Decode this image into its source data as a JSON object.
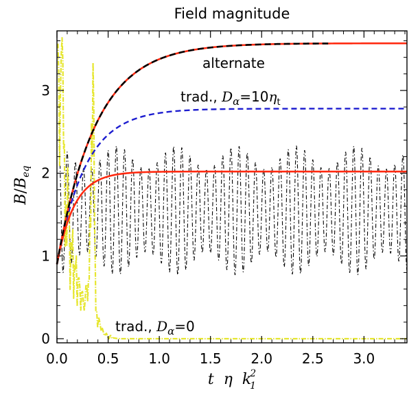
{
  "chart_data": {
    "type": "line",
    "title": "Field magnitude",
    "xlabel": {
      "t": "t",
      "eta": "η",
      "k": "k",
      "sup": "2",
      "sub": "1"
    },
    "ylabel": {
      "B": "B",
      "slash": "/",
      "Beq": "B",
      "sub": "eq"
    },
    "xlim": [
      0,
      3.42
    ],
    "ylim": [
      -0.05,
      3.72
    ],
    "x_ticks": [
      "0.0",
      "0.5",
      "1.0",
      "1.5",
      "2.0",
      "2.5",
      "3.0"
    ],
    "y_ticks": [
      "0",
      "1",
      "2",
      "3"
    ],
    "grid": false,
    "annotations": [
      {
        "text": "alternate",
        "x": 1.05,
        "y": 3.3
      },
      {
        "prefix": "trad.,",
        "D": "D",
        "alpha": "α",
        "eq": "=10",
        "eta": "η",
        "sub": "t",
        "x": 0.9,
        "y": 2.85
      },
      {
        "prefix": "trad.,",
        "D": "D",
        "alpha": "α",
        "eq": "=0",
        "x": 0.45,
        "y": 0.12
      }
    ],
    "series": [
      {
        "style": "black dash-dot",
        "color": "#000000",
        "kind": "oscillation",
        "mean": 1.55,
        "amplitude": 0.78,
        "period": 0.08,
        "start": 0.02,
        "end": 3.42
      },
      {
        "style": "yellow dash-dot",
        "color": "#e6e62e",
        "kind": "noisy-decay",
        "points": [
          [
            0.01,
            3.7
          ],
          [
            0.05,
            2.8
          ],
          [
            0.08,
            1.9
          ],
          [
            0.12,
            1.2
          ],
          [
            0.18,
            0.8
          ],
          [
            0.25,
            0.45
          ],
          [
            0.3,
            0.55
          ],
          [
            0.33,
            1.9
          ],
          [
            0.36,
            2.4
          ],
          [
            0.38,
            0.3
          ],
          [
            0.45,
            0.08
          ],
          [
            0.5,
            0.02
          ],
          [
            0.6,
            0.0
          ],
          [
            3.42,
            0.0
          ]
        ]
      },
      {
        "style": "blue dashed",
        "color": "#1c1ccf",
        "kind": "saturation",
        "y0": 0.9,
        "y_inf": 2.78,
        "tau": 0.28,
        "start": 0.0,
        "end": 3.42
      },
      {
        "style": "red solid",
        "color": "#ff2a10",
        "kind": "saturation",
        "y0": 0.9,
        "y_inf": 2.02,
        "tau": 0.17,
        "start": 0.0,
        "end": 3.42
      },
      {
        "style": "red solid",
        "color": "#ff2a10",
        "kind": "saturation",
        "y0": 0.9,
        "y_inf": 3.57,
        "tau": 0.38,
        "start": 0.0,
        "end": 3.42
      },
      {
        "style": "black dashed",
        "color": "#000000",
        "kind": "saturation",
        "y0": 0.9,
        "y_inf": 3.57,
        "tau": 0.38,
        "start": 0.0,
        "end": 2.65
      }
    ]
  }
}
